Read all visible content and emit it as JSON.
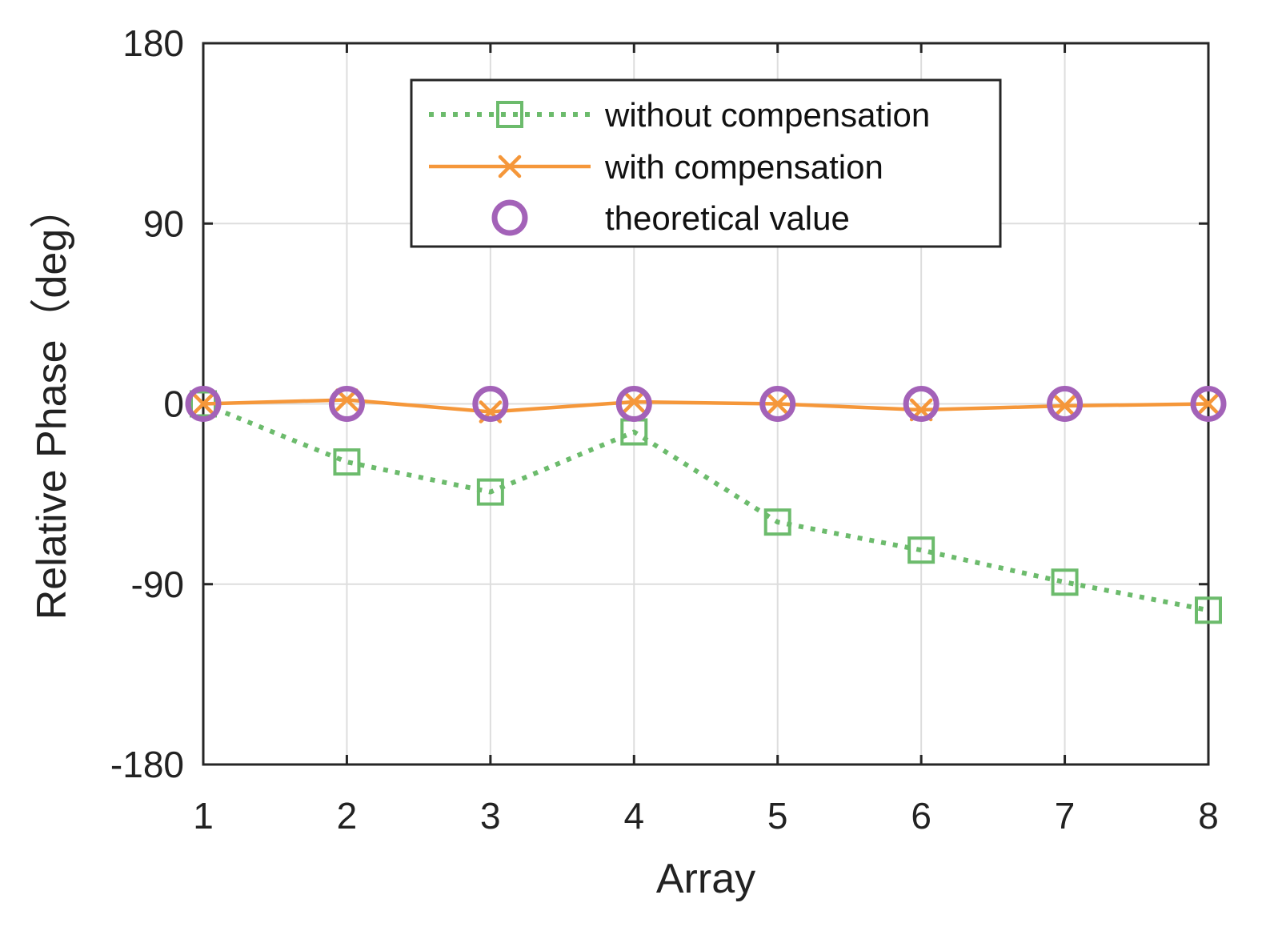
{
  "chart_data": {
    "type": "line",
    "title": "",
    "xlabel": "Array",
    "ylabel": "Relative Phase（deg）",
    "categories": [
      1,
      2,
      3,
      4,
      5,
      6,
      7,
      8
    ],
    "xlim": [
      1,
      8
    ],
    "ylim": [
      -180,
      180
    ],
    "xticks": [
      "1",
      "2",
      "3",
      "4",
      "5",
      "6",
      "7",
      "8"
    ],
    "yticks": [
      "-180",
      "-90",
      "0",
      "90",
      "180"
    ],
    "ytick_values": [
      -180,
      -90,
      0,
      90,
      180
    ],
    "grid": true,
    "legend_position": "top-center",
    "series": [
      {
        "name": "without compensation",
        "values": [
          0,
          -29,
          -44,
          -14,
          -59,
          -73,
          -89,
          -103
        ],
        "color": "#6cbb6c",
        "line_style": "dotted",
        "marker": "square"
      },
      {
        "name": "with compensation",
        "values": [
          0,
          2,
          -4,
          1,
          0,
          -3,
          -1,
          0
        ],
        "color": "#f5973a",
        "line_style": "solid",
        "marker": "x"
      },
      {
        "name": "theoretical value",
        "values": [
          0,
          0,
          0,
          0,
          0,
          0,
          0,
          0
        ],
        "color": "#a362b8",
        "line_style": "none",
        "marker": "circle"
      }
    ]
  }
}
